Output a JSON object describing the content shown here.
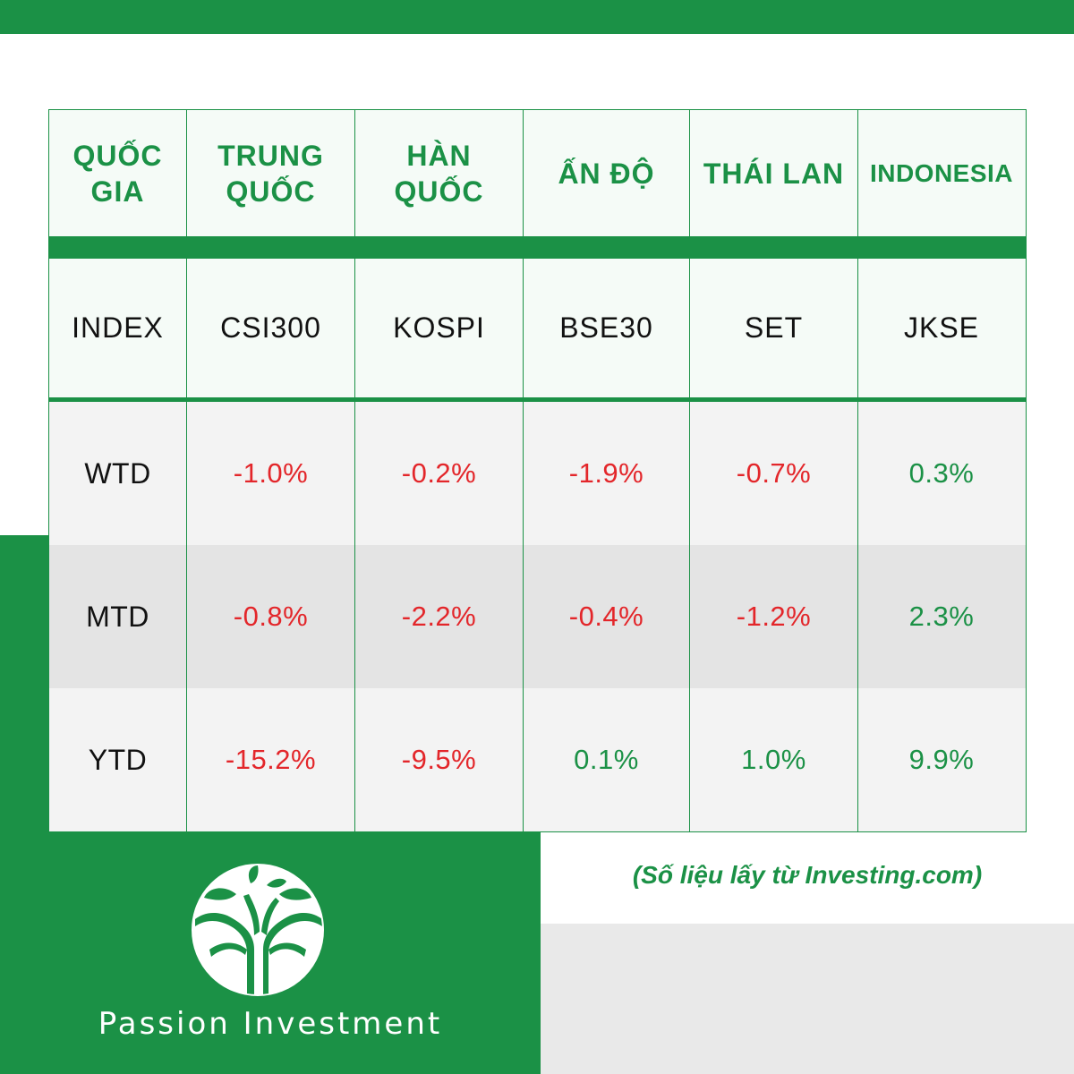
{
  "header": {
    "country_label": "QUỐC GIA",
    "countries": [
      "TRUNG QUỐC",
      "HÀN QUỐC",
      "ẤN ĐỘ",
      "THÁI LAN",
      "INDONESIA"
    ]
  },
  "index_row": {
    "label": "INDEX",
    "values": [
      "CSI300",
      "KOSPI",
      "BSE30",
      "SET",
      "JKSE"
    ]
  },
  "rows": [
    {
      "label": "WTD",
      "values": [
        "-1.0%",
        "-0.2%",
        "-1.9%",
        "-0.7%",
        "0.3%"
      ]
    },
    {
      "label": "MTD",
      "values": [
        "-0.8%",
        "-2.2%",
        "-0.4%",
        "-1.2%",
        "2.3%"
      ]
    },
    {
      "label": "YTD",
      "values": [
        "-15.2%",
        "-9.5%",
        "0.1%",
        "1.0%",
        "9.9%"
      ]
    }
  ],
  "source_note": "(Số liệu lấy từ Investing.com)",
  "brand": {
    "name": "Passion Investment",
    "logo_icon": "tree-logo-icon"
  },
  "colors": {
    "brand_green": "#1b9146",
    "negative_red": "#e3262a"
  }
}
